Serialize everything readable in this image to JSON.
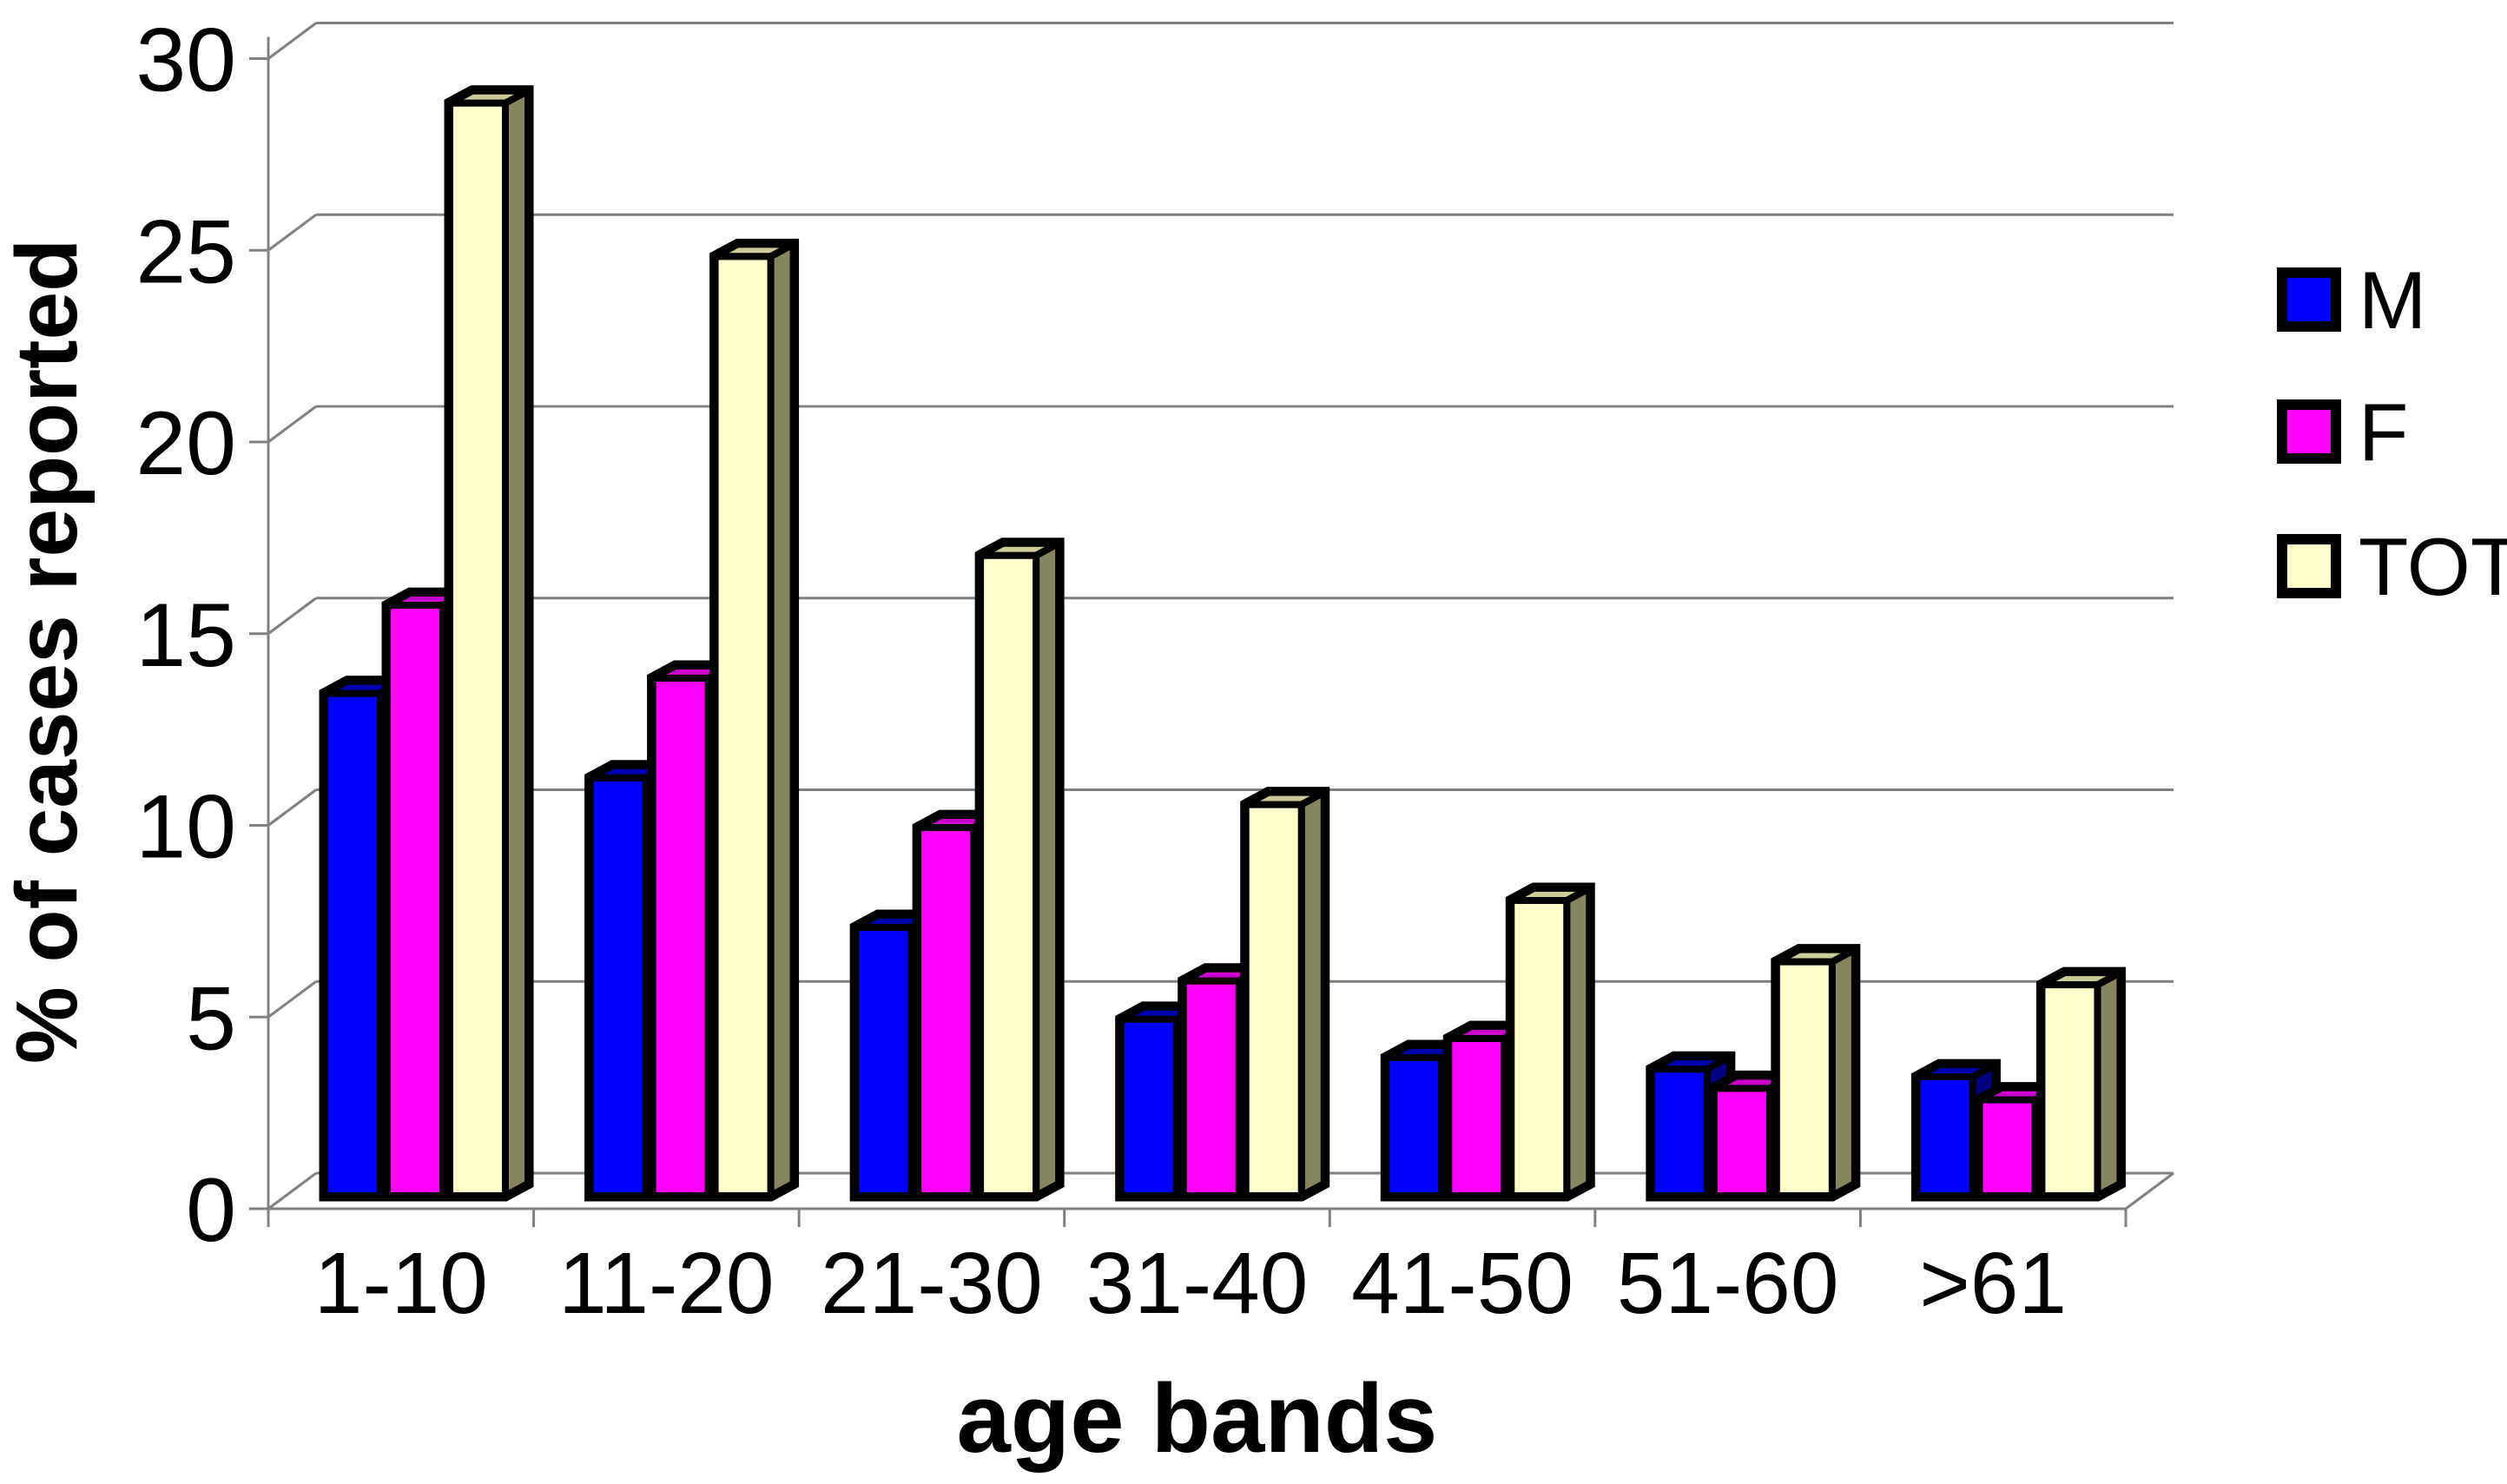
{
  "chart_data": {
    "type": "bar",
    "style": "3d-clustered-column",
    "title": "",
    "xlabel": "age bands",
    "ylabel": "% of cases reported",
    "categories": [
      "1-10",
      "11-20",
      "21-30",
      "31-40",
      "41-50",
      "51-60",
      ">61"
    ],
    "series": [
      {
        "name": "M",
        "values": [
          13.1,
          10.9,
          7.0,
          4.6,
          3.6,
          3.3,
          3.1
        ],
        "colors": {
          "front": "#0000FF",
          "top": "#0000B0",
          "side": "#000080"
        }
      },
      {
        "name": "F",
        "values": [
          15.4,
          13.5,
          9.6,
          5.6,
          4.1,
          2.8,
          2.5
        ],
        "colors": {
          "front": "#FF00FF",
          "top": "#CC00CC",
          "side": "#990099"
        }
      },
      {
        "name": "TOT",
        "values": [
          28.5,
          24.5,
          16.7,
          10.2,
          7.7,
          6.1,
          5.5
        ],
        "colors": {
          "front": "#FFFFCC",
          "top": "#CCCC99",
          "side": "#85855F"
        }
      }
    ],
    "yticks": [
      0,
      5,
      10,
      15,
      20,
      25,
      30
    ],
    "ylim": [
      0,
      30
    ],
    "grid": true,
    "legend_position": "right",
    "legend_labels": [
      "M",
      "F",
      "TOT"
    ],
    "colors": {
      "grid": "#808080",
      "axis": "#808080",
      "outline": "#000000",
      "text": "#000000",
      "background": "#FFFFFF"
    }
  }
}
